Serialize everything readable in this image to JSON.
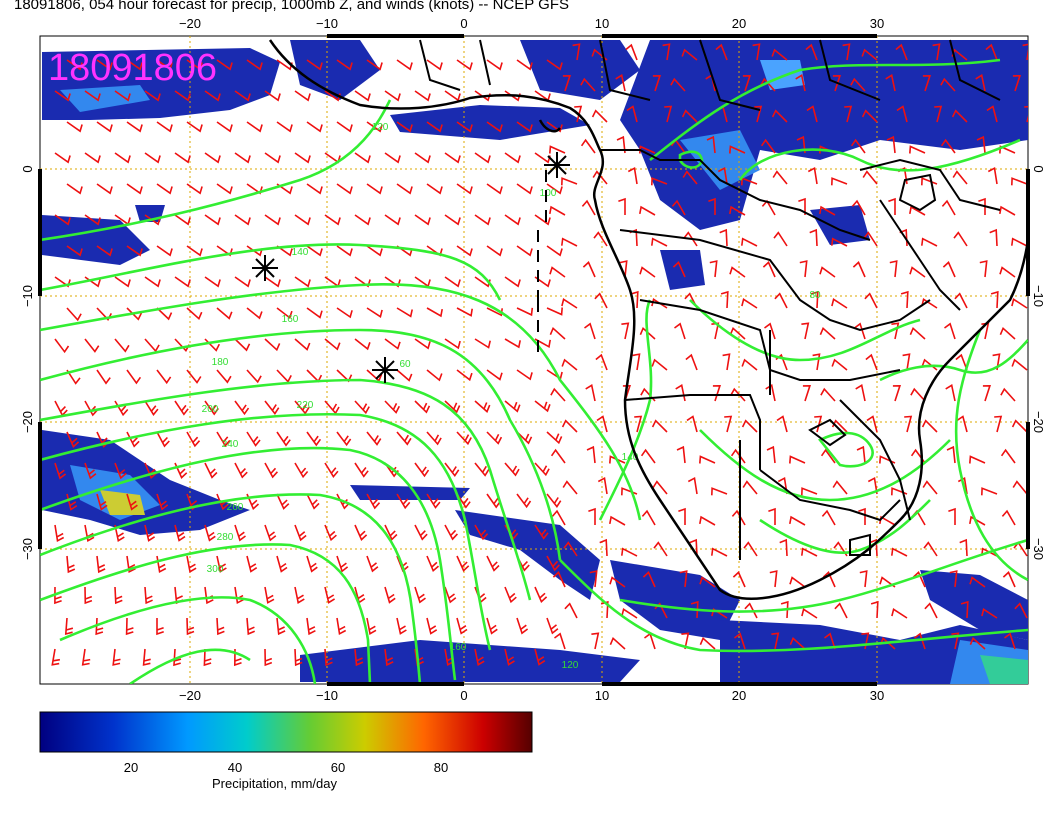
{
  "title": "18091806, 054 hour forecast for precip, 1000mb Z, and winds (knots) -- NCEP GFS",
  "stamp": "18091806",
  "x_ticks": [
    "−20",
    "−10",
    "0",
    "10",
    "20",
    "30"
  ],
  "y_ticks": [
    "0",
    "−10",
    "−20",
    "−30"
  ],
  "contour_labels": [
    "120",
    "140",
    "160",
    "180",
    "200",
    "220",
    "240",
    "260",
    "280",
    "300",
    "100",
    "60",
    "80",
    "160",
    "140",
    "120"
  ],
  "colorbar": {
    "ticks": [
      "20",
      "40",
      "60",
      "80"
    ],
    "label": "Precipitation, mm/day"
  },
  "colors": {
    "contour": "#33ee33",
    "barb": "#ee1111",
    "grid": "#ddaa00",
    "stamp": "#ff33ff"
  }
}
